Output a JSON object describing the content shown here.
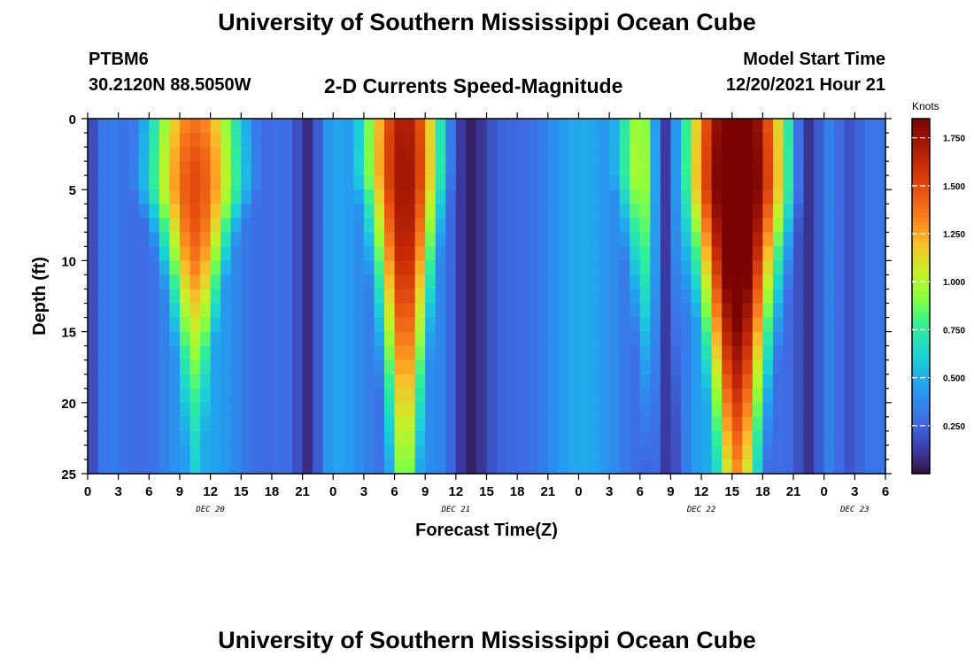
{
  "header": {
    "title": "University of Southern Mississippi Ocean Cube",
    "station_id": "PTBM6",
    "station_coords": "30.2120N  88.5050W",
    "plot_title": "2-D Currents Speed-Magnitude",
    "model_start_label": "Model Start Time",
    "model_start_value": "12/20/2021 Hour 21"
  },
  "footer": {
    "title": "University of Southern Mississippi Ocean Cube"
  },
  "chart_data": {
    "type": "heatmap",
    "title": "2-D Currents Speed-Magnitude",
    "xlabel": "Forecast Time(Z)",
    "ylabel": "Depth (ft)",
    "x_unit": "hours since Dec 20 00Z",
    "xlim": [
      0,
      78
    ],
    "ylim": [
      0,
      25
    ],
    "y_inverted": true,
    "x_tick_values": [
      0,
      3,
      6,
      9,
      12,
      15,
      18,
      21,
      24,
      27,
      30,
      33,
      36,
      39,
      42,
      45,
      48,
      51,
      54,
      57,
      60,
      63,
      66,
      69,
      72,
      75,
      78
    ],
    "x_tick_labels": [
      "0",
      "3",
      "6",
      "9",
      "12",
      "15",
      "18",
      "21",
      "0",
      "3",
      "6",
      "9",
      "12",
      "15",
      "18",
      "21",
      "0",
      "3",
      "6",
      "9",
      "12",
      "15",
      "18",
      "21",
      "0",
      "3",
      "6"
    ],
    "date_labels": [
      {
        "label": "DEC 20",
        "hour": 12
      },
      {
        "label": "DEC 21",
        "hour": 36
      },
      {
        "label": "DEC 22",
        "hour": 60
      },
      {
        "label": "DEC 23",
        "hour": 75
      }
    ],
    "y_tick_values": [
      0,
      5,
      10,
      15,
      20,
      25
    ],
    "y_tick_labels": [
      "0",
      "5",
      "10",
      "15",
      "20",
      "25"
    ],
    "colorbar": {
      "unit_label": "Knots",
      "min": 0.0,
      "max": 1.85,
      "tick_values": [
        0.25,
        0.5,
        0.75,
        1.0,
        1.25,
        1.5,
        1.75
      ],
      "tick_labels": [
        "0.250",
        "0.500",
        "0.750",
        "1.000",
        "1.250",
        "1.500",
        "1.750"
      ]
    },
    "speed_field": {
      "base_knots": 0.45,
      "surface_jets": [
        {
          "center_hour": 10.5,
          "peak_depth_ft": 5,
          "peak_knots": 1.5,
          "half_width_hours": 4.5,
          "depth_scale_ft": 9
        },
        {
          "center_hour": 31.0,
          "peak_depth_ft": 4,
          "peak_knots": 1.75,
          "half_width_hours": 4.0,
          "depth_scale_ft": 14
        },
        {
          "center_hour": 56.0,
          "peak_depth_ft": 4,
          "peak_knots": 1.45,
          "half_width_hours": 4.0,
          "depth_scale_ft": 12
        },
        {
          "center_hour": 63.5,
          "peak_depth_ft": 5,
          "peak_knots": 2.1,
          "half_width_hours": 5.0,
          "depth_scale_ft": 15
        }
      ],
      "slack_bands": [
        {
          "center_hour": 0.0,
          "half_width_hours": 1.5,
          "min_knots": 0.15
        },
        {
          "center_hour": 21.5,
          "half_width_hours": 1.5,
          "min_knots": 0.08
        },
        {
          "center_hour": 37.5,
          "half_width_hours": 2.5,
          "min_knots": 0.05
        },
        {
          "center_hour": 56.5,
          "half_width_hours": 1.8,
          "min_knots": 0.12
        },
        {
          "center_hour": 70.5,
          "half_width_hours": 1.5,
          "min_knots": 0.1
        },
        {
          "center_hour": 74.5,
          "half_width_hours": 2.0,
          "min_knots": 0.2
        }
      ]
    }
  }
}
